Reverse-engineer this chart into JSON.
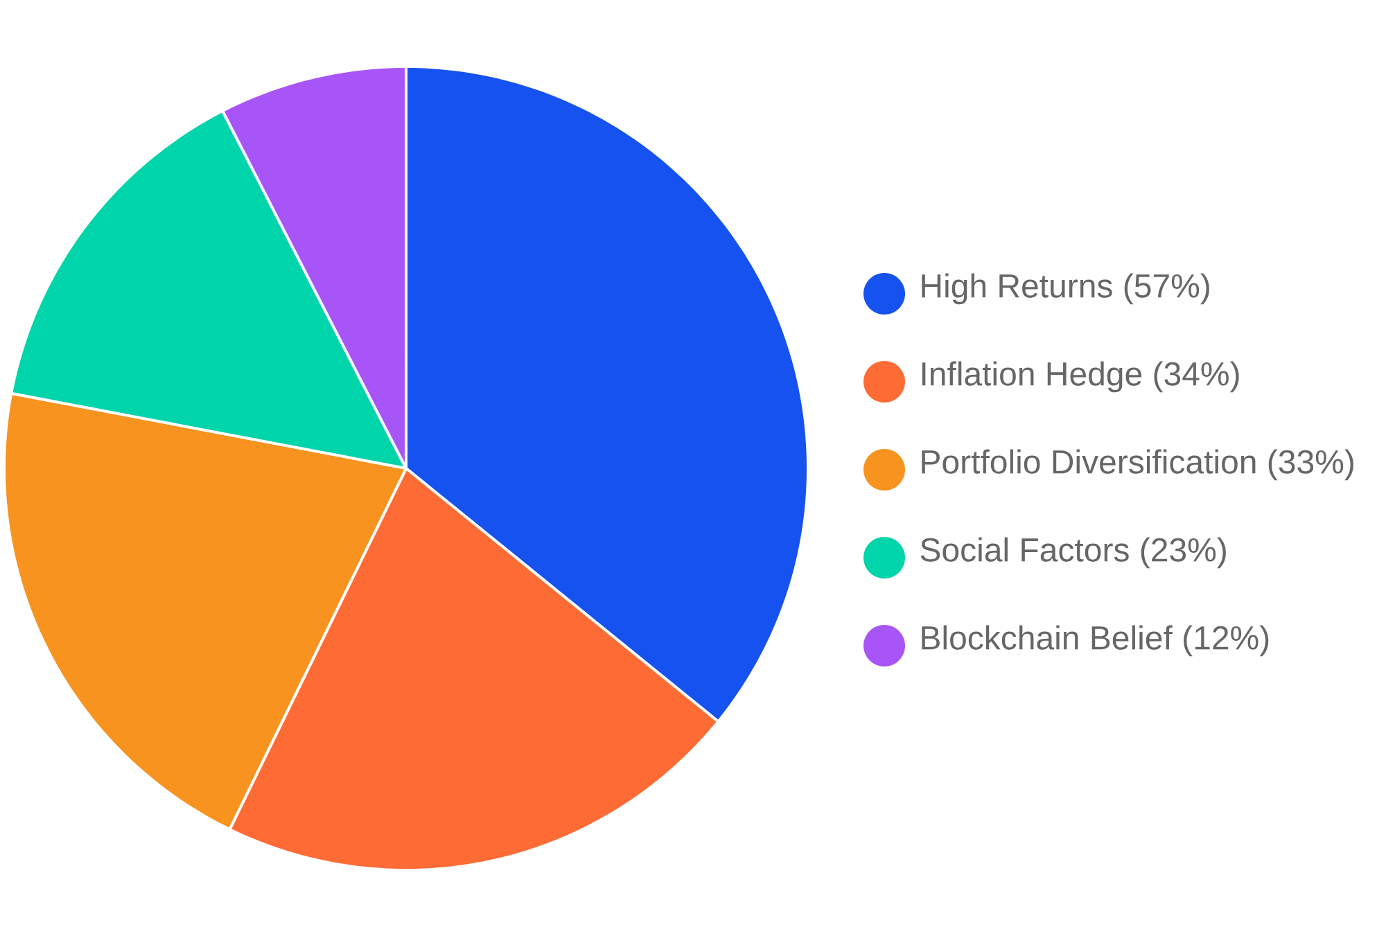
{
  "chart_data": {
    "type": "pie",
    "categories": [
      "High Returns (57%)",
      "Inflation Hedge (34%)",
      "Portfolio Diversification (33%)",
      "Social Factors (23%)",
      "Blockchain Belief (12%)"
    ],
    "values": [
      57,
      34,
      33,
      23,
      12
    ],
    "colors": [
      "#1652f0",
      "#ff6b35",
      "#f7931e",
      "#00d4aa",
      "#a855f7"
    ],
    "legend": "right"
  }
}
